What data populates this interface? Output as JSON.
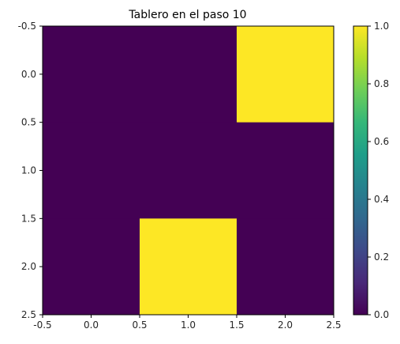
{
  "chart_data": {
    "type": "heatmap",
    "title": "Tablero en el paso 10",
    "xlabel": "",
    "ylabel": "",
    "matrix": [
      [
        0,
        0,
        1
      ],
      [
        0,
        0,
        0
      ],
      [
        0,
        1,
        0
      ]
    ],
    "extent_x": [
      -0.5,
      2.5
    ],
    "extent_y": [
      -0.5,
      2.5
    ],
    "y_inverted": true,
    "x_ticks": [
      "-0.5",
      "0.0",
      "0.5",
      "1.0",
      "1.5",
      "2.0",
      "2.5"
    ],
    "y_ticks": [
      "-0.5",
      "0.0",
      "0.5",
      "1.0",
      "1.5",
      "2.0",
      "2.5"
    ],
    "x_tick_values": [
      -0.5,
      0.0,
      0.5,
      1.0,
      1.5,
      2.0,
      2.5
    ],
    "y_tick_values": [
      -0.5,
      0.0,
      0.5,
      1.0,
      1.5,
      2.0,
      2.5
    ],
    "colormap": "viridis",
    "vmin": 0.0,
    "vmax": 1.0,
    "colorbar_ticks": [
      "0.0",
      "0.2",
      "0.4",
      "0.6",
      "0.8",
      "1.0"
    ],
    "colorbar_tick_values": [
      0.0,
      0.2,
      0.4,
      0.6,
      0.8,
      1.0
    ],
    "grid": false
  }
}
